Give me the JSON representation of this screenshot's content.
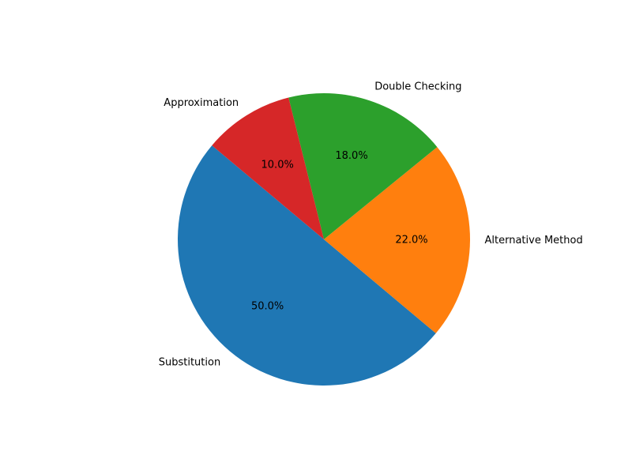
{
  "chart_data": {
    "type": "pie",
    "title": "",
    "start_angle_deg": 140,
    "direction": "counterclockwise",
    "percent_format": "%.1f%%",
    "slices": [
      {
        "label": "Substitution",
        "value": 50.0,
        "color": "#1f77b4",
        "pct_text": "50.0%"
      },
      {
        "label": "Alternative Method",
        "value": 22.0,
        "color": "#ff7f0e",
        "pct_text": "22.0%"
      },
      {
        "label": "Double Checking",
        "value": 18.0,
        "color": "#2ca02c",
        "pct_text": "18.0%"
      },
      {
        "label": "Approximation",
        "value": 10.0,
        "color": "#d62728",
        "pct_text": "10.0%"
      }
    ]
  }
}
